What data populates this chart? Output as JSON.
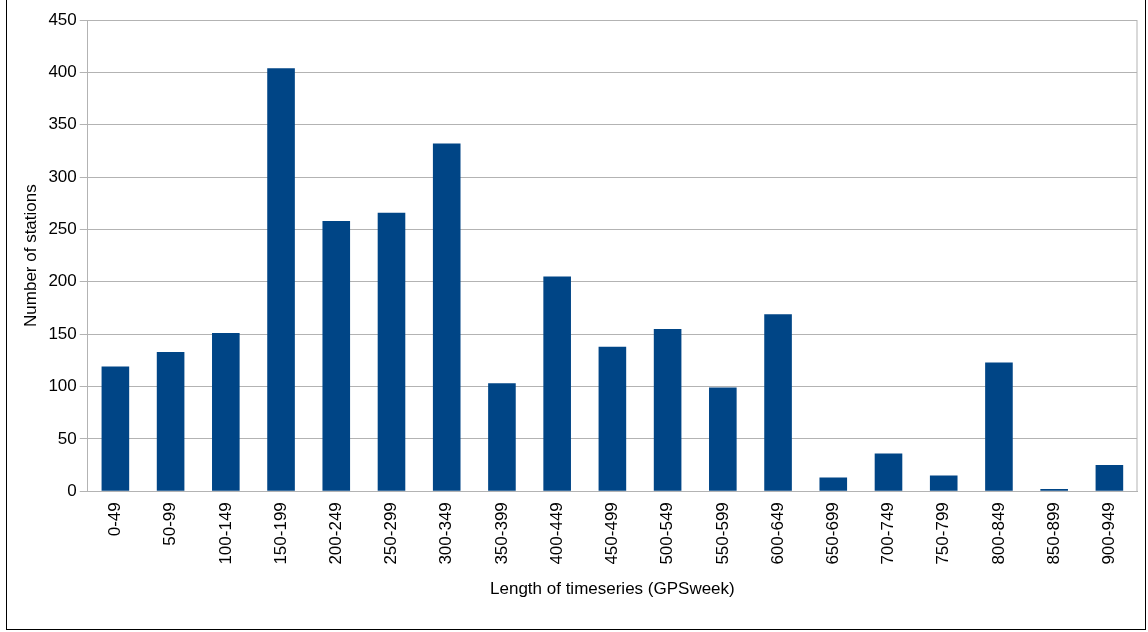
{
  "chart_data": {
    "type": "bar",
    "xlabel": "Length of timeseries (GPSweek)",
    "ylabel": "Number of stations",
    "categories": [
      "0-49",
      "50-99",
      "100-149",
      "150-199",
      "200-249",
      "250-299",
      "300-349",
      "350-399",
      "400-449",
      "450-499",
      "500-549",
      "550-599",
      "600-649",
      "650-699",
      "700-749",
      "750-799",
      "800-849",
      "850-899",
      "900-949"
    ],
    "values": [
      119,
      133,
      151,
      404,
      258,
      266,
      332,
      103,
      205,
      138,
      155,
      99,
      169,
      13,
      36,
      15,
      123,
      2,
      25
    ],
    "color": "#004586",
    "ylim": [
      0,
      450
    ],
    "yticks": [
      0,
      50,
      100,
      150,
      200,
      250,
      300,
      350,
      400,
      450
    ],
    "grid": "y"
  }
}
